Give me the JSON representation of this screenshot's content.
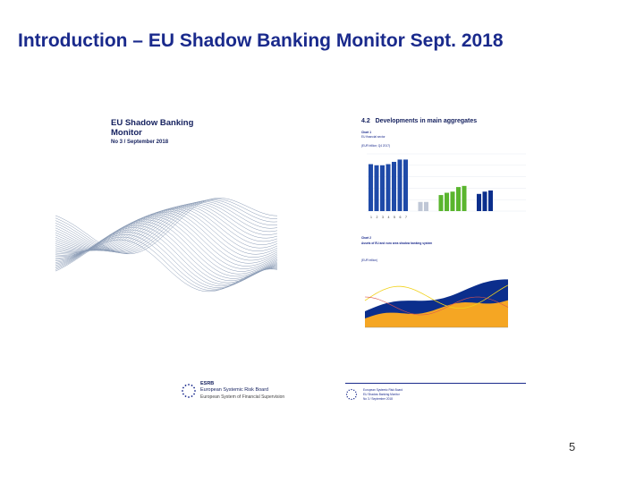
{
  "slide": {
    "title": "Introduction – EU Shadow Banking Monitor Sept. 2018",
    "page_number": "5"
  },
  "cover": {
    "title": "EU Shadow Banking Monitor",
    "subtitle": "No 3 / September 2018",
    "footer": {
      "org_short": "ESRB",
      "org_full": "European Systemic Risk Board",
      "org_part": "European System of Financial Supervision"
    },
    "colors": {
      "navy": "#14205e",
      "wave": "#8a9bb5"
    }
  },
  "page2": {
    "section": "4.2",
    "heading": "Developments in main aggregates",
    "chart1": {
      "label": "Chart 1",
      "caption": "EU financial sector",
      "units": "(EUR trillion; Q4 2017)",
      "bars_blue": [
        41,
        40,
        40,
        41,
        43,
        45,
        45
      ],
      "bars_gray": [
        8,
        8
      ],
      "bars_green": [
        14,
        16,
        17,
        21,
        22
      ],
      "bars_navy2": [
        15,
        17,
        18
      ],
      "bar_labels": [
        "1",
        "2",
        "3",
        "4",
        "5",
        "6",
        "7"
      ],
      "ylim": [
        0,
        50
      ]
    },
    "chart2": {
      "label": "Chart 2",
      "caption": "Assets of EU and euro area shadow banking system",
      "units": "(EUR trillion)"
    },
    "footer": {
      "org_full": "European Systemic Risk Board",
      "doc": "EU Shadow Banking Monitor",
      "issue": "No 3 / September 2018"
    },
    "colors": {
      "blue": "#1f4aa8",
      "navy": "#0b2e8c",
      "green": "#5ab52e",
      "gray": "#bfc7d6",
      "orange": "#f5a623",
      "yellow": "#f1d21c"
    }
  }
}
